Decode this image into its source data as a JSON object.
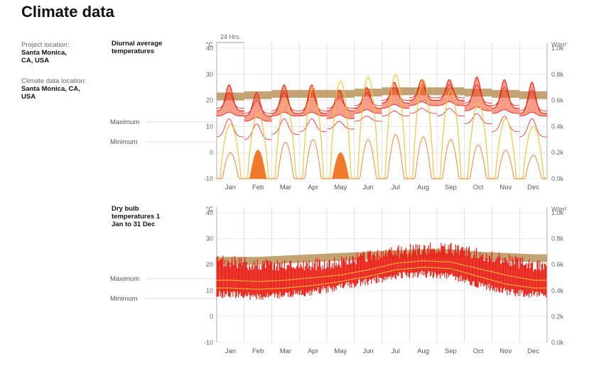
{
  "page": {
    "title": "Climate data",
    "project_location_label": "Project location:",
    "project_location": "Santa Monica, CA, USA",
    "climate_location_label": "Climate data location:",
    "climate_location": "Santa Monica, CA, USA"
  },
  "colors": {
    "comfort_band": "#b8935a",
    "max_temp": "#e8241b",
    "min_temp": "#f07a2a",
    "radiation": "#f3c53a",
    "fill_red": "#f44a2a",
    "grid": "#cccccc"
  },
  "chart_data": [
    {
      "type": "line",
      "title": "Diurnal average temperatures",
      "bracket_label": "24 Hrs.",
      "maximum_label": "Maximum",
      "minimum_label": "Minimum",
      "ylabel_left": "°C",
      "ylabel_right": "W/m²",
      "ylim": [
        -10,
        40
      ],
      "yticks": [
        "40",
        "30",
        "20",
        "10",
        "0",
        "-10"
      ],
      "y2lim": [
        0,
        1.0
      ],
      "y2ticks": [
        "1.0k",
        "0.8k",
        "0.6k",
        "0.4k",
        "0.2k",
        "0.0k"
      ],
      "categories": [
        "Jan",
        "Feb",
        "Mar",
        "Apr",
        "May",
        "Jun",
        "Jul",
        "Aug",
        "Sep",
        "Oct",
        "Nov",
        "Dec"
      ],
      "comfort_band": {
        "low": [
          20,
          20.5,
          21,
          21,
          21,
          21.5,
          22,
          22,
          22,
          21.5,
          21,
          20.5
        ],
        "high": [
          23,
          23.5,
          24,
          24,
          24,
          24.5,
          25,
          25,
          25,
          24.5,
          24,
          23.5
        ]
      },
      "max_daily_high": [
        26,
        23,
        26,
        26,
        24,
        25,
        27,
        28,
        28,
        29,
        28,
        27
      ],
      "max_daily_low": [
        16,
        14,
        15,
        15,
        16,
        17,
        19,
        20,
        20,
        18,
        17,
        15
      ],
      "avg_daily_high": [
        23,
        20,
        23,
        23,
        21,
        23,
        25,
        26,
        26,
        26,
        25,
        24
      ],
      "min_daily_high": [
        17,
        15,
        17,
        17,
        16,
        18,
        20,
        21,
        21,
        19,
        18,
        17
      ],
      "min_daily_low": [
        6,
        5,
        7,
        8,
        9,
        12,
        14,
        15,
        14,
        11,
        8,
        6
      ],
      "radiation_peak": [
        0.42,
        0.5,
        0.6,
        0.7,
        0.75,
        0.78,
        0.8,
        0.76,
        0.68,
        0.58,
        0.46,
        0.4
      ],
      "radiation_min_peak": [
        0.2,
        0.22,
        0.28,
        0.3,
        0.2,
        0.3,
        0.34,
        0.32,
        0.3,
        0.26,
        0.22,
        0.18
      ],
      "solid_radiation_months": [
        "Feb",
        "May"
      ]
    },
    {
      "type": "line",
      "title": "Dry bulb temperatures 1 Jan to 31 Dec",
      "maximum_label": "Maximum",
      "minimum_label": "Minimum",
      "ylabel_left": "°C",
      "ylabel_right": "W/m²",
      "ylim": [
        -10,
        40
      ],
      "yticks": [
        "40",
        "30",
        "20",
        "10",
        "0",
        "-10"
      ],
      "y2lim": [
        0,
        1.0
      ],
      "y2ticks": [
        "1.0k",
        "0.8k",
        "0.6k",
        "0.4k",
        "0.2k",
        "0.0k"
      ],
      "categories": [
        "Jan",
        "Feb",
        "Mar",
        "Apr",
        "May",
        "Jun",
        "Jul",
        "Aug",
        "Sep",
        "Oct",
        "Nov",
        "Dec"
      ],
      "comfort_band": {
        "low": [
          20,
          20,
          20.5,
          21,
          21.5,
          22,
          22.5,
          23,
          23,
          22,
          21.5,
          21
        ],
        "high": [
          23,
          23,
          23.5,
          24,
          24.5,
          25,
          25.5,
          26,
          26,
          25,
          24.5,
          24
        ]
      },
      "monthly_mean": [
        14,
        13.5,
        14,
        15,
        16,
        18,
        20.5,
        21.5,
        21,
        18.5,
        16,
        14
      ],
      "monthly_high": [
        20,
        19,
        19,
        19,
        20,
        22,
        24,
        25,
        25,
        23,
        21,
        19
      ],
      "monthly_low": [
        10,
        9,
        10,
        11,
        13,
        15,
        17,
        18,
        17,
        14,
        11,
        10
      ],
      "min_temp_line": [
        11,
        10.5,
        11,
        12,
        13.5,
        15.5,
        18,
        19,
        18.5,
        15.5,
        12.5,
        11
      ]
    }
  ]
}
